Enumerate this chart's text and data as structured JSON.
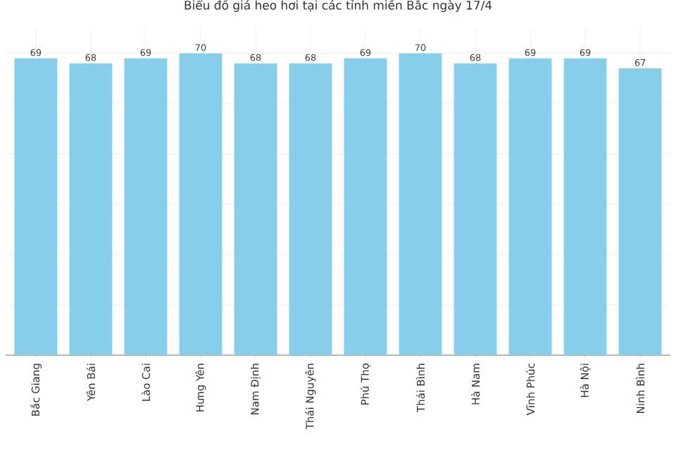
{
  "chart_data": {
    "type": "bar",
    "title": "Biểu đồ giá heo hơi tại các tỉnh miền Bắc ngày 17/4",
    "categories": [
      "Bắc Giang",
      "Yên Bái",
      "Lào Cai",
      "Hưng Yên",
      "Nam Định",
      "Thái Nguyên",
      "Phú Thọ",
      "Thái Bình",
      "Hà Nam",
      "Vĩnh Phúc",
      "Hà Nội",
      "Ninh Bình"
    ],
    "values": [
      69,
      68,
      69,
      70,
      68,
      68,
      69,
      70,
      68,
      69,
      69,
      67
    ],
    "color": "#87ceeb",
    "data_labels": true,
    "grid": true,
    "ylim": [
      10,
      75
    ],
    "yticks": [
      {
        "value": 20,
        "label": null
      },
      {
        "value": 30,
        "label": null
      },
      {
        "value": 40,
        "label": null
      },
      {
        "value": 50,
        "label": null
      },
      {
        "value": 60,
        "label": null
      },
      {
        "value": 70,
        "label": null
      }
    ],
    "tick_labels": "x"
  }
}
